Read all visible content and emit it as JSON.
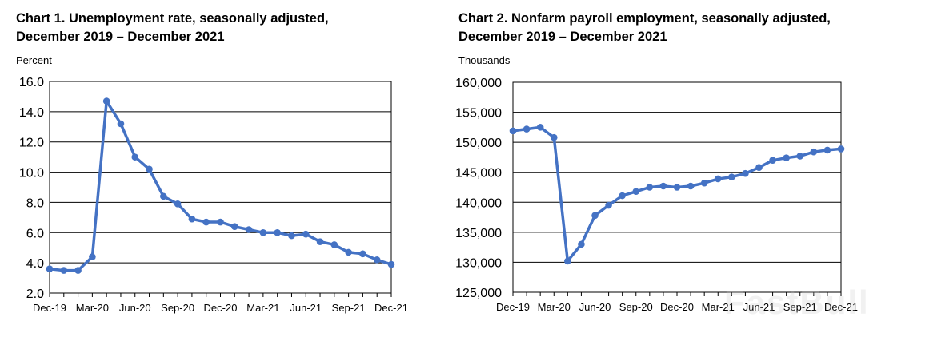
{
  "chart_data": [
    {
      "type": "line",
      "title": "Chart 1. Unemployment rate, seasonally adjusted,",
      "subtitle": "December 2019 – December 2021",
      "ylabel": "Percent",
      "ylim": [
        2.0,
        16.0
      ],
      "yticks": [
        "16.0",
        "14.0",
        "12.0",
        "10.0",
        "8.0",
        "6.0",
        "4.0",
        "2.0"
      ],
      "xtick_labels": [
        "Dec-19",
        "Mar-20",
        "Jun-20",
        "Sep-20",
        "Dec-20",
        "Mar-21",
        "Jun-21",
        "Sep-21",
        "Dec-21"
      ],
      "x": [
        "Dec-19",
        "Jan-20",
        "Feb-20",
        "Mar-20",
        "Apr-20",
        "May-20",
        "Jun-20",
        "Jul-20",
        "Aug-20",
        "Sep-20",
        "Oct-20",
        "Nov-20",
        "Dec-20",
        "Jan-21",
        "Feb-21",
        "Mar-21",
        "Apr-21",
        "May-21",
        "Jun-21",
        "Jul-21",
        "Aug-21",
        "Sep-21",
        "Oct-21",
        "Nov-21",
        "Dec-21"
      ],
      "values": [
        3.6,
        3.5,
        3.5,
        4.4,
        14.7,
        13.2,
        11.0,
        10.2,
        8.4,
        7.9,
        6.9,
        6.7,
        6.7,
        6.4,
        6.2,
        6.0,
        6.0,
        5.8,
        5.9,
        5.4,
        5.2,
        4.7,
        4.6,
        4.2,
        3.9
      ],
      "grid": true,
      "color": "#4472C4"
    },
    {
      "type": "line",
      "title": "Chart 2. Nonfarm payroll employment, seasonally adjusted,",
      "subtitle": "December 2019 – December 2021",
      "ylabel": "Thousands",
      "ylim": [
        125000,
        160000
      ],
      "yticks": [
        "160,000",
        "155,000",
        "150,000",
        "145,000",
        "140,000",
        "135,000",
        "130,000",
        "125,000"
      ],
      "xtick_labels": [
        "Dec-19",
        "Mar-20",
        "Jun-20",
        "Sep-20",
        "Dec-20",
        "Mar-21",
        "Jun-21",
        "Sep-21",
        "Dec-21"
      ],
      "x": [
        "Dec-19",
        "Jan-20",
        "Feb-20",
        "Mar-20",
        "Apr-20",
        "May-20",
        "Jun-20",
        "Jul-20",
        "Aug-20",
        "Sep-20",
        "Oct-20",
        "Nov-20",
        "Dec-20",
        "Jan-21",
        "Feb-21",
        "Mar-21",
        "Apr-21",
        "May-21",
        "Jun-21",
        "Jul-21",
        "Aug-21",
        "Sep-21",
        "Oct-21",
        "Nov-21",
        "Dec-21"
      ],
      "values": [
        151900,
        152200,
        152500,
        150800,
        130200,
        133000,
        137800,
        139500,
        141100,
        141800,
        142500,
        142700,
        142500,
        142700,
        143200,
        143900,
        144200,
        144800,
        145800,
        147000,
        147400,
        147700,
        148400,
        148700,
        148900
      ],
      "grid": true,
      "color": "#4472C4"
    }
  ],
  "watermark": "FastBull"
}
